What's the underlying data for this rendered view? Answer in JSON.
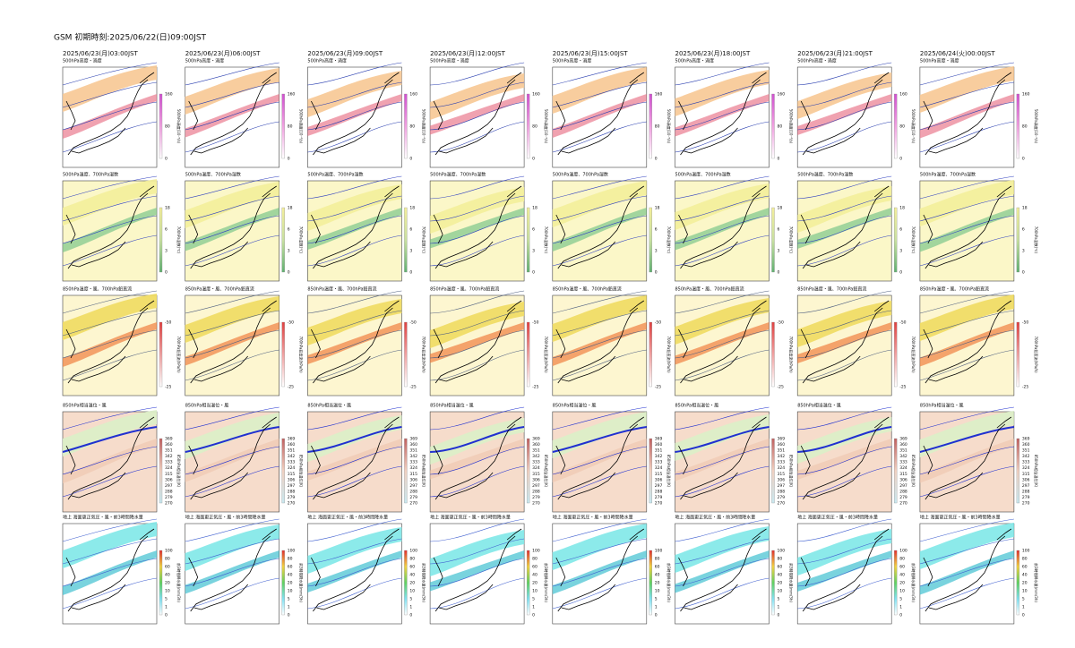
{
  "title": "GSM 初期時刻:2025/06/22(日)09:00JST",
  "columns": [
    "2025/06/23(月)03:00JST",
    "2025/06/23(月)06:00JST",
    "2025/06/23(月)09:00JST",
    "2025/06/23(月)12:00JST",
    "2025/06/23(月)15:00JST",
    "2025/06/23(月)18:00JST",
    "2025/06/23(月)21:00JST",
    "2025/06/24(火)00:00JST"
  ],
  "rows": [
    {
      "label": "500hPa高度・渦度",
      "colorbar_label": "500hPa渦度(10⁻⁶/s)",
      "ticks": [
        160,
        80,
        0
      ]
    },
    {
      "label": "500hPa温度、700hPa湿数",
      "colorbar_label": "700hPa湿数(℃)",
      "ticks": [
        18,
        6,
        3,
        0
      ]
    },
    {
      "label": "850hPa温度・風、700hPa鉛直流",
      "colorbar_label": "700hPa鉛直流(hPa/h)",
      "ticks": [
        -50,
        -25
      ]
    },
    {
      "label": "850hPa相当温位・風",
      "colorbar_label": "850hPa相当温位(K)",
      "ticks": [
        369,
        360,
        351,
        342,
        333,
        324,
        315,
        306,
        297,
        288,
        279,
        270
      ]
    },
    {
      "label": "地上 海面更正気圧・風・前3時間降水量",
      "colorbar_label": "前3時間降水量(mm/3h)",
      "ticks": [
        100,
        80,
        60,
        40,
        20,
        10,
        5,
        1,
        0
      ]
    }
  ]
}
